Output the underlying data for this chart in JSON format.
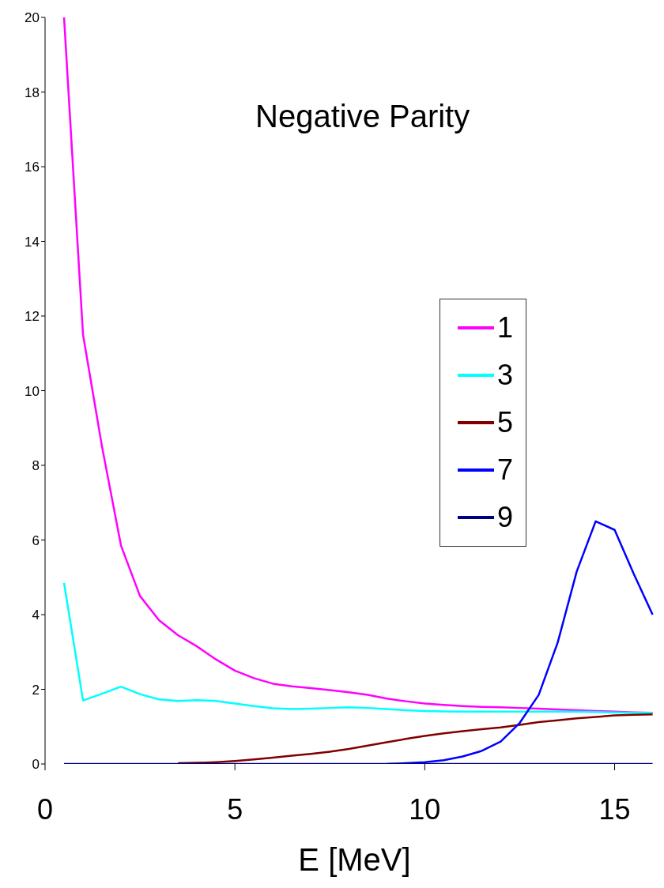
{
  "chart_data": {
    "type": "line",
    "title": "Negative Parity",
    "xlabel": "E [MeV]",
    "xlim": [
      0,
      16.3
    ],
    "xticks": [
      0,
      5,
      10,
      15
    ],
    "ylim": [
      0,
      20
    ],
    "yticks": [
      0,
      2,
      4,
      6,
      8,
      10,
      12,
      14,
      16,
      18,
      20
    ],
    "grid": false,
    "legend": "right",
    "marker": "none",
    "line_style": "solid",
    "x": [
      0.5,
      1,
      1.5,
      2,
      2.5,
      3,
      3.5,
      4,
      4.5,
      5,
      5.5,
      6,
      6.5,
      7,
      7.5,
      8,
      8.5,
      9,
      9.5,
      10,
      10.5,
      11,
      11.5,
      12,
      12.5,
      13,
      13.5,
      14,
      14.5,
      15,
      15.5,
      16
    ],
    "series": [
      {
        "name": "1",
        "color": "#ff00ff",
        "values": [
          20,
          11.5,
          8.5,
          5.85,
          4.5,
          3.85,
          3.45,
          3.15,
          2.8,
          2.5,
          2.3,
          2.15,
          2.08,
          2.03,
          1.98,
          1.92,
          1.85,
          1.75,
          1.68,
          1.62,
          1.58,
          1.55,
          1.53,
          1.52,
          1.5,
          1.48,
          1.46,
          1.44,
          1.42,
          1.4,
          1.38,
          1.37
        ]
      },
      {
        "name": "3",
        "color": "#00ffff",
        "values": [
          4.85,
          1.7,
          1.88,
          2.07,
          1.87,
          1.73,
          1.69,
          1.71,
          1.69,
          1.62,
          1.55,
          1.49,
          1.47,
          1.48,
          1.5,
          1.52,
          1.5,
          1.47,
          1.44,
          1.42,
          1.41,
          1.4,
          1.4,
          1.4,
          1.4,
          1.4,
          1.4,
          1.4,
          1.39,
          1.38,
          1.37,
          1.37
        ]
      },
      {
        "name": "5",
        "color": "#800000",
        "values": [
          null,
          null,
          null,
          null,
          null,
          null,
          0.02,
          0.03,
          0.05,
          0.08,
          0.12,
          0.17,
          0.22,
          0.27,
          0.33,
          0.4,
          0.49,
          0.58,
          0.67,
          0.75,
          0.82,
          0.88,
          0.93,
          0.98,
          1.05,
          1.12,
          1.17,
          1.22,
          1.26,
          1.3,
          1.32,
          1.33
        ]
      },
      {
        "name": "7",
        "color": "#0000ff",
        "values": [
          null,
          null,
          null,
          null,
          null,
          null,
          null,
          null,
          null,
          null,
          null,
          null,
          null,
          null,
          null,
          null,
          null,
          0,
          0.02,
          0.05,
          0.1,
          0.2,
          0.35,
          0.6,
          1.1,
          1.85,
          3.25,
          5.15,
          6.5,
          6.27,
          5.1,
          4.0
        ]
      },
      {
        "name": "9",
        "color": "#000080",
        "values": [
          0,
          0,
          0,
          0,
          0,
          0,
          0,
          0,
          0,
          0,
          0,
          0,
          0,
          0,
          0,
          0,
          0,
          0,
          0,
          0,
          0,
          0,
          0,
          0,
          0,
          0,
          0,
          0,
          0,
          0,
          0,
          0
        ]
      }
    ]
  }
}
